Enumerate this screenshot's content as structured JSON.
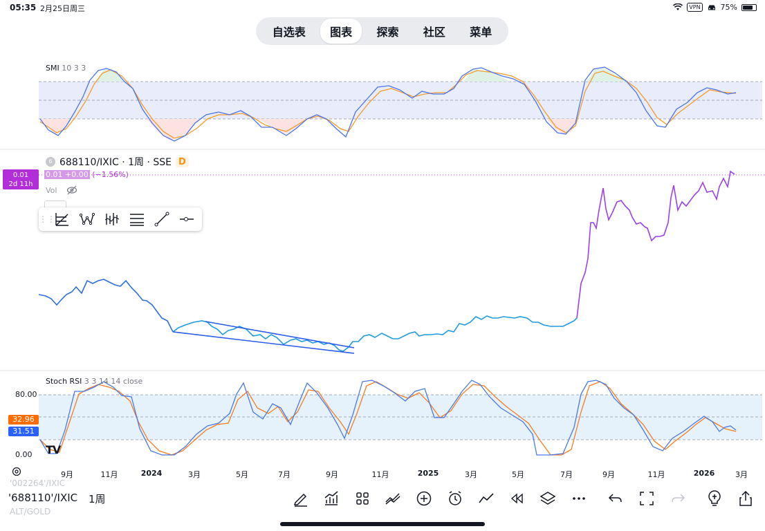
{
  "status_bar": {
    "time": "05:35",
    "date": "2月25日周三",
    "vpn": "VPN",
    "battery": "75%",
    "battery_level": 0.75
  },
  "tabs": [
    {
      "label": "自选表",
      "active": false
    },
    {
      "label": "图表",
      "active": true
    },
    {
      "label": "探索",
      "active": false
    },
    {
      "label": "社区",
      "active": false
    },
    {
      "label": "菜单",
      "active": false
    }
  ],
  "smi_panel": {
    "name": "SMI",
    "params": "10 3 3"
  },
  "main_panel": {
    "symbol": "688110/IXIC · 1周 · SSE",
    "symbol_icon": "6",
    "badge": "D",
    "price_tag": "0.01",
    "countdown": "2d 11h",
    "ohlc_box": "0.01 +0.00",
    "change": "(−1.56%)",
    "vol_label": "Vol",
    "accent": "#b22ed8"
  },
  "drawing_toolbar": [
    "fib-tool",
    "pattern-tool",
    "elliott-wave-tool",
    "gann-tool",
    "trend-line-tool",
    "horizontal-ray-tool"
  ],
  "stoch_panel": {
    "name": "Stoch RSI",
    "params": "3 3 14 14 close",
    "level_80": "80.00",
    "level_0": "0.00",
    "k_value": "32.96",
    "d_value": "31.51",
    "k_color": "#ff6d00",
    "d_color": "#2962ff"
  },
  "x_axis": [
    {
      "label": "9月",
      "bold": false
    },
    {
      "label": "11月",
      "bold": false
    },
    {
      "label": "2024",
      "bold": true
    },
    {
      "label": "3月",
      "bold": false
    },
    {
      "label": "5月",
      "bold": false
    },
    {
      "label": "7月",
      "bold": false
    },
    {
      "label": "9月",
      "bold": false
    },
    {
      "label": "11月",
      "bold": false
    },
    {
      "label": "2025",
      "bold": true
    },
    {
      "label": "3月",
      "bold": false
    },
    {
      "label": "5月",
      "bold": false
    },
    {
      "label": "7月",
      "bold": false
    },
    {
      "label": "9月",
      "bold": false
    },
    {
      "label": "11月",
      "bold": false
    },
    {
      "label": "2026",
      "bold": true
    },
    {
      "label": "3月",
      "bold": false
    }
  ],
  "bottom": {
    "prev_symbol": "'002264'/IXIC",
    "symbol": "'688110'/IXIC",
    "interval": "1周",
    "next_symbol": "ALT/GOLD",
    "logo": "TV"
  }
}
